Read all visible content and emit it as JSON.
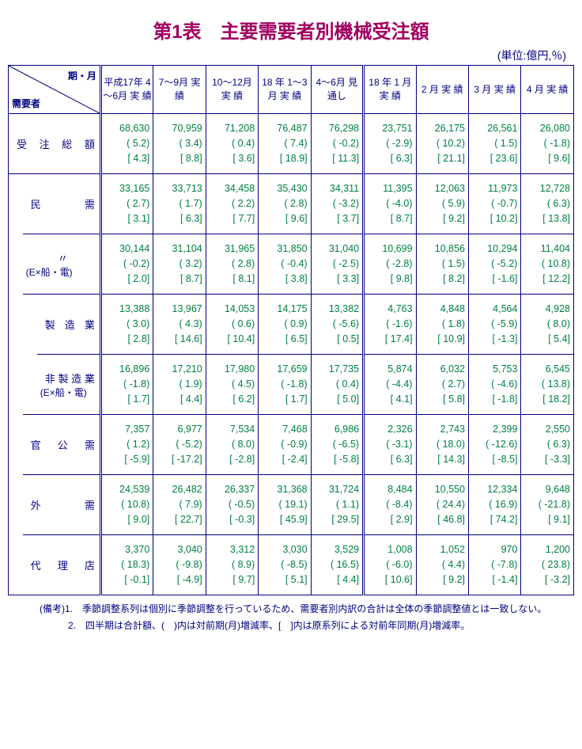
{
  "title": "第1表　主要需要者別機械受注額",
  "unit": "(単位:億円,％)",
  "header": {
    "diag_top": "期・月",
    "diag_bottom": "需要者",
    "cols": [
      "平成17年\n4～6月\n実 績",
      "7～9月\n実 績",
      "10～12月\n実 績",
      "18 年\n1～3月\n実 績",
      "4～6月\n見通し",
      "18 年\n 1 月\n実 績",
      " 2 月\n実 績",
      " 3 月\n実 績",
      " 4 月\n実 績"
    ]
  },
  "rows": [
    {
      "label_main": "受 注 総 額",
      "indent": 0,
      "cells": [
        "68,630\n( 5.2)\n[ 4.3]",
        "70,959\n( 3.4)\n[ 8.8]",
        "71,208\n( 0.4)\n[ 3.6]",
        "76,487\n( 7.4)\n[ 18.9]",
        "76,298\n( -0.2)\n[ 11.3]",
        "23,751\n( -2.9)\n[ 6.3]",
        "26,175\n( 10.2)\n[ 21.1]",
        "26,561\n( 1.5)\n[ 23.6]",
        "26,080\n( -1.8)\n[ 9.6]"
      ]
    },
    {
      "label_main": "民　　　需",
      "indent": 1,
      "cells": [
        "33,165\n( 2.7)\n[ 3.1]",
        "33,713\n( 1.7)\n[ 6.3]",
        "34,458\n( 2.2)\n[ 7.7]",
        "35,430\n( 2.8)\n[ 9.6]",
        "34,311\n( -3.2)\n[ 3.7]",
        "11,395\n( -4.0)\n[ 8.7]",
        "12,063\n( 5.9)\n[ 9.2]",
        "11,973\n( -0.7)\n[ 10.2]",
        "12,728\n( 6.3)\n[ 13.8]"
      ]
    },
    {
      "label_main": "〃",
      "label_sub": "(E×船・電)",
      "indent": 1,
      "cells": [
        "30,144\n( -0.2)\n[ 2.0]",
        "31,104\n( 3.2)\n[ 8.7]",
        "31,965\n( 2.8)\n[ 8.1]",
        "31,850\n( -0.4)\n[ 3.8]",
        "31,040\n( -2.5)\n[ 3.3]",
        "10,699\n( -2.8)\n[ 9.8]",
        "10,856\n( 1.5)\n[ 8.2]",
        "10,294\n( -5.2)\n[ -1.6]",
        "11,404\n( 10.8)\n[ 12.2]"
      ]
    },
    {
      "label_main": "製 造 業",
      "indent": 2,
      "cells": [
        "13,388\n( 3.0)\n[ 2.8]",
        "13,967\n( 4.3)\n[ 14.6]",
        "14,053\n( 0.6)\n[ 10.4]",
        "14,175\n( 0.9)\n[ 6.5]",
        "13,382\n( -5.6)\n[ 0.5]",
        "4,763\n( -1.6)\n[ 17.4]",
        "4,848\n( 1.8)\n[ 10.9]",
        "4,564\n( -5.9)\n[ -1.3]",
        "4,928\n( 8.0)\n[ 5.4]"
      ]
    },
    {
      "label_main": "非 製 造 業",
      "label_sub": "(E×船・電)",
      "indent": 2,
      "cells": [
        "16,896\n( -1.8)\n[ 1.7]",
        "17,210\n( 1.9)\n[ 4.4]",
        "17,980\n( 4.5)\n[ 6.2]",
        "17,659\n( -1.8)\n[ 1.7]",
        "17,735\n( 0.4)\n[ 5.0]",
        "5,874\n( -4.4)\n[ 4.1]",
        "6,032\n( 2.7)\n[ 5.8]",
        "5,753\n( -4.6)\n[ -1.8]",
        "6,545\n( 13.8)\n[ 18.2]"
      ]
    },
    {
      "label_main": "官　公　需",
      "indent": 1,
      "cells": [
        "7,357\n( 1.2)\n[ -5.9]",
        "6,977\n( -5.2)\n[ -17.2]",
        "7,534\n( 8.0)\n[ -2.8]",
        "7,468\n( -0.9)\n[ -2.4]",
        "6,986\n( -6.5)\n[ -5.8]",
        "2,326\n( -3.1)\n[ 6.3]",
        "2,743\n( 18.0)\n[ 14.3]",
        "2,399\n( -12.6)\n[ -8.5]",
        "2,550\n( 6.3)\n[ -3.3]"
      ]
    },
    {
      "label_main": "外　　　需",
      "indent": 1,
      "cells": [
        "24,539\n( 10.8)\n[ 9.0]",
        "26,482\n( 7.9)\n[ 22.7]",
        "26,337\n( -0.5)\n[ -0.3]",
        "31,368\n( 19.1)\n[ 45.9]",
        "31,724\n( 1.1)\n[ 29.5]",
        "8,484\n( -8.4)\n[ 2.9]",
        "10,550\n( 24.4)\n[ 46.8]",
        "12,334\n( 16.9)\n[ 74.2]",
        "9,648\n( -21.8)\n[ 9.1]"
      ]
    },
    {
      "label_main": "代　理　店",
      "indent": 1,
      "cells": [
        "3,370\n( 18.3)\n[ -0.1]",
        "3,040\n( -9.8)\n[ -4.9]",
        "3,312\n( 8.9)\n[ 9.7]",
        "3,030\n( -8.5)\n[ 5.1]",
        "3,529\n( 16.5)\n[ 4.4]",
        "1,008\n( -6.0)\n[ 10.6]",
        "1,052\n( 4.4)\n[ 9.2]",
        "970\n( -7.8)\n[ -1.4]",
        "1,200\n( 23.8)\n[ -3.2]"
      ]
    }
  ],
  "notes": {
    "tag": "(備考)",
    "items": [
      "1.　季節調整系列は個別に季節調整を行っているため、需要者別内訳の合計は全体の季節調整値とは一致しない。",
      "2.　四半期は合計額、(　)内は対前期(月)増減率、[　]内は原系列による対前年同期(月)増減率。"
    ]
  },
  "colors": {
    "title": "#a00060",
    "border": "#000080",
    "text": "#000080",
    "data": "#008040"
  }
}
